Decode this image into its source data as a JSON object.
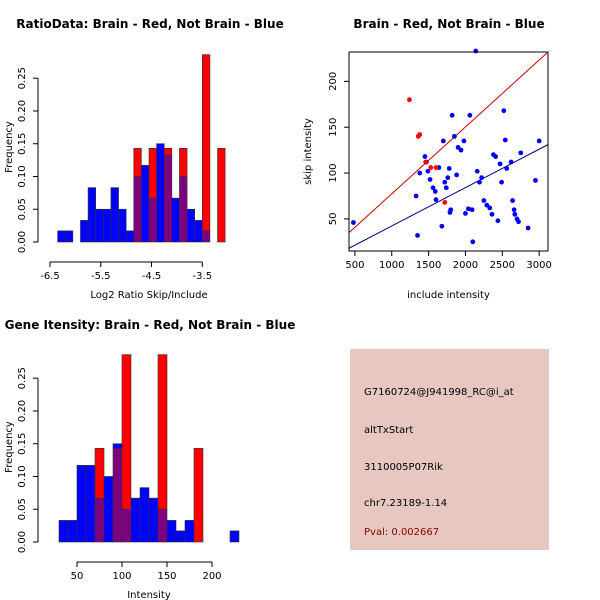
{
  "colors": {
    "red": "#ff0000",
    "blue": "#0000ff",
    "overlap": "#7f007f",
    "red_line": "#cc0000",
    "blue_line": "#00008b",
    "panel_bg": "#e6c8c0",
    "pval": "#8b0000"
  },
  "chart_data": [
    {
      "type": "bar",
      "title": "RatioData: Brain - Red, Not Brain - Blue",
      "xlabel": "Log2 Ratio Skip/Include",
      "ylabel": "Frequency",
      "xlim": [
        -6.5,
        -2.6
      ],
      "ylim": [
        0,
        0.29
      ],
      "x_ticks": [
        -6.5,
        -5.5,
        -4.5,
        -3.5
      ],
      "x_tick_labels": [
        "-6.5",
        "-5.5",
        "-4.5",
        "-3.5"
      ],
      "y_ticks": [
        0,
        0.05,
        0.1,
        0.15,
        0.2,
        0.25
      ],
      "y_tick_labels": [
        "0.00",
        "0.05",
        "0.10",
        "0.15",
        "0.20",
        "0.25"
      ],
      "bin_edges": [
        -6.35,
        -6.2,
        -6.05,
        -5.9,
        -5.75,
        -5.6,
        -5.45,
        -5.3,
        -5.15,
        -5.0,
        -4.85,
        -4.7,
        -4.55,
        -4.4,
        -4.25,
        -4.1,
        -3.95,
        -3.8,
        -3.65,
        -3.5,
        -3.35,
        -3.2,
        -3.05,
        -2.9,
        -2.75
      ],
      "series": [
        {
          "name": "Not Brain",
          "color": "blue",
          "values": [
            0.017,
            0.017,
            0,
            0.033,
            0.083,
            0.05,
            0.05,
            0.083,
            0.05,
            0.017,
            0.1,
            0.117,
            0.067,
            0.15,
            0.133,
            0.067,
            0.1,
            0.05,
            0.033,
            0.017,
            0,
            0,
            0,
            0
          ]
        },
        {
          "name": "Brain",
          "color": "red",
          "values": [
            0,
            0,
            0,
            0,
            0,
            0,
            0,
            0,
            0,
            0,
            0.143,
            0,
            0.143,
            0,
            0.143,
            0,
            0.143,
            0,
            0,
            0.286,
            0,
            0.143,
            0,
            0
          ]
        }
      ]
    },
    {
      "type": "scatter",
      "title": "Brain - Red, Not Brain - Blue",
      "xlabel": "include intensity",
      "ylabel": "skip intensity",
      "xlim": [
        420,
        3120
      ],
      "ylim": [
        15,
        232
      ],
      "x_ticks": [
        500,
        1000,
        1500,
        2000,
        2500,
        3000
      ],
      "x_tick_labels": [
        "500",
        "1000",
        "1500",
        "2000",
        "2500",
        "3000"
      ],
      "y_ticks": [
        50,
        100,
        150,
        200
      ],
      "y_tick_labels": [
        "50",
        "100",
        "150",
        "200"
      ],
      "series": [
        {
          "name": "Not Brain",
          "color": "blue",
          "points": [
            [
              480,
              46
            ],
            [
              1350,
              32
            ],
            [
              1330,
              75
            ],
            [
              1380,
              100
            ],
            [
              1450,
              118
            ],
            [
              1470,
              112
            ],
            [
              1490,
              102
            ],
            [
              1520,
              93
            ],
            [
              1560,
              84
            ],
            [
              1590,
              80
            ],
            [
              1600,
              71
            ],
            [
              1640,
              106
            ],
            [
              1680,
              42
            ],
            [
              1700,
              135
            ],
            [
              1720,
              90
            ],
            [
              1740,
              84
            ],
            [
              1760,
              95
            ],
            [
              1780,
              105
            ],
            [
              1790,
              57
            ],
            [
              1800,
              60
            ],
            [
              1820,
              163
            ],
            [
              1850,
              140
            ],
            [
              1880,
              98
            ],
            [
              1900,
              128
            ],
            [
              1940,
              125
            ],
            [
              1980,
              135
            ],
            [
              2000,
              56
            ],
            [
              2040,
              61
            ],
            [
              2060,
              163
            ],
            [
              2090,
              60
            ],
            [
              2100,
              25
            ],
            [
              2140,
              233
            ],
            [
              2160,
              102
            ],
            [
              2190,
              90
            ],
            [
              2220,
              95
            ],
            [
              2250,
              70
            ],
            [
              2290,
              65
            ],
            [
              2330,
              62
            ],
            [
              2360,
              55
            ],
            [
              2380,
              120
            ],
            [
              2410,
              118
            ],
            [
              2440,
              48
            ],
            [
              2470,
              110
            ],
            [
              2490,
              90
            ],
            [
              2520,
              168
            ],
            [
              2540,
              136
            ],
            [
              2560,
              105
            ],
            [
              2620,
              112
            ],
            [
              2640,
              70
            ],
            [
              2660,
              60
            ],
            [
              2670,
              55
            ],
            [
              2700,
              50
            ],
            [
              2720,
              47
            ],
            [
              2750,
              122
            ],
            [
              2850,
              40
            ],
            [
              2950,
              92
            ],
            [
              3000,
              135
            ]
          ]
        },
        {
          "name": "Brain",
          "color": "red",
          "points": [
            [
              1240,
              180
            ],
            [
              1360,
              140
            ],
            [
              1380,
              142
            ],
            [
              1460,
              112
            ],
            [
              1530,
              106
            ],
            [
              1600,
              106
            ],
            [
              1720,
              68
            ]
          ]
        }
      ],
      "fit_lines": [
        {
          "name": "Brain",
          "color": "red_line",
          "from": [
            420,
            35
          ],
          "to": [
            3120,
            232
          ]
        },
        {
          "name": "Not Brain",
          "color": "blue_line",
          "from": [
            420,
            18
          ],
          "to": [
            3120,
            131
          ]
        }
      ]
    },
    {
      "type": "bar",
      "title": "Gene Itensity: Brain - Red, Not Brain - Blue",
      "xlabel": "Intensity",
      "ylabel": "Frequency",
      "xlim": [
        20,
        240
      ],
      "ylim": [
        0,
        0.29
      ],
      "x_ticks": [
        50,
        100,
        150,
        200
      ],
      "x_tick_labels": [
        "50",
        "100",
        "150",
        "200"
      ],
      "y_ticks": [
        0,
        0.05,
        0.1,
        0.15,
        0.2,
        0.25
      ],
      "y_tick_labels": [
        "0.00",
        "0.05",
        "0.10",
        "0.15",
        "0.20",
        "0.25"
      ],
      "bin_edges": [
        30,
        40,
        50,
        60,
        70,
        80,
        90,
        100,
        110,
        120,
        130,
        140,
        150,
        160,
        170,
        180,
        190,
        200,
        210,
        220,
        230
      ],
      "series": [
        {
          "name": "Not Brain",
          "color": "blue",
          "values": [
            0.033,
            0.033,
            0.117,
            0.117,
            0.067,
            0.1,
            0.15,
            0.05,
            0.067,
            0.083,
            0.067,
            0.05,
            0.033,
            0.017,
            0.033,
            0,
            0,
            0,
            0,
            0.017
          ]
        },
        {
          "name": "Brain",
          "color": "red",
          "values": [
            0,
            0,
            0,
            0,
            0.143,
            0,
            0.143,
            0.286,
            0,
            0,
            0,
            0.286,
            0,
            0,
            0,
            0.143,
            0,
            0,
            0,
            0
          ]
        }
      ]
    }
  ],
  "info": {
    "probe": "G7160724@J941998_RC@i_at",
    "event": "altTxStart",
    "gene": "3110005P07Rik",
    "location": "chr7.23189-1.14",
    "pval": "Pval: 0.002667"
  }
}
